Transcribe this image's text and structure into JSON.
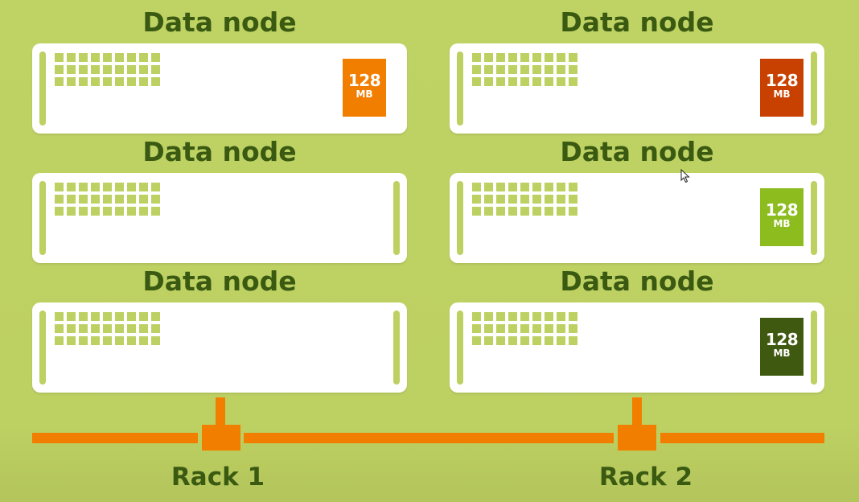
{
  "racks": [
    {
      "label": "Rack 1",
      "nodes": [
        {
          "title": "Data node",
          "block": {
            "size": "128",
            "unit": "MB",
            "color": "#f27e00"
          }
        },
        {
          "title": "Data node",
          "block": null
        },
        {
          "title": "Data node",
          "block": null
        }
      ]
    },
    {
      "label": "Rack 2",
      "nodes": [
        {
          "title": "Data node",
          "block": {
            "size": "128",
            "unit": "MB",
            "color": "#c94100"
          }
        },
        {
          "title": "Data node",
          "block": {
            "size": "128",
            "unit": "MB",
            "color": "#8cbc1e"
          }
        },
        {
          "title": "Data node",
          "block": {
            "size": "128",
            "unit": "MB",
            "color": "#3f5a10"
          }
        }
      ]
    }
  ],
  "colors": {
    "background": "#bdd062",
    "network": "#f27e00",
    "title_text": "#3a5a12"
  }
}
